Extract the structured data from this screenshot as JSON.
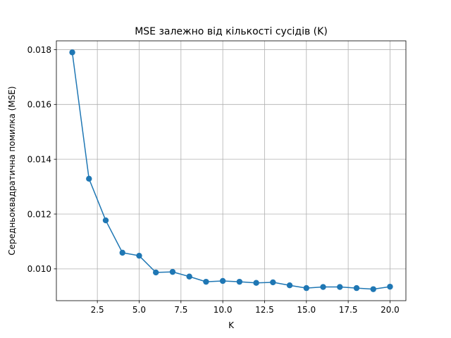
{
  "chart_data": {
    "type": "line",
    "title": "MSE залежно від кількості сусідів (K)",
    "xlabel": "K",
    "ylabel": "Середньоквадратична помилка (MSE)",
    "xlim": [
      0.05,
      20.95
    ],
    "ylim": [
      0.00884,
      0.01832
    ],
    "xticks": [
      2.5,
      5.0,
      7.5,
      10.0,
      12.5,
      15.0,
      17.5,
      20.0
    ],
    "xtick_labels": [
      "2.5",
      "5.0",
      "7.5",
      "10.0",
      "12.5",
      "15.0",
      "17.5",
      "20.0"
    ],
    "yticks": [
      0.01,
      0.012,
      0.014,
      0.016,
      0.018
    ],
    "ytick_labels": [
      "0.010",
      "0.012",
      "0.014",
      "0.016",
      "0.018"
    ],
    "grid": true,
    "marker": "circle",
    "series": [
      {
        "color": "#1f77b4",
        "x": [
          1,
          2,
          3,
          4,
          5,
          6,
          7,
          8,
          9,
          10,
          11,
          12,
          13,
          14,
          15,
          16,
          17,
          18,
          19,
          20
        ],
        "values": [
          0.0179,
          0.01329,
          0.01177,
          0.01059,
          0.01048,
          0.00987,
          0.00989,
          0.00972,
          0.00953,
          0.00956,
          0.00953,
          0.00949,
          0.00951,
          0.0094,
          0.0093,
          0.00934,
          0.00934,
          0.0093,
          0.00926,
          0.00935
        ]
      }
    ]
  }
}
